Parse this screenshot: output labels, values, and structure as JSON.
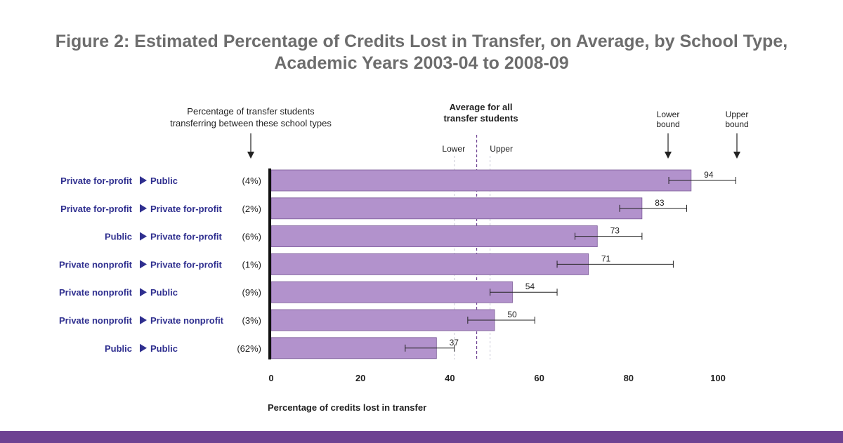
{
  "title": "Figure 2: Estimated Percentage of Credits Lost in Transfer, on Average, by School Type, Academic Years 2003-04 to 2008-09",
  "colors": {
    "bar_fill": "#b292cc",
    "bar_stroke": "#7a5a97",
    "category_text": "#2f2f8f",
    "average_line": "#6e4292",
    "bound_line": "#c9c9d6",
    "bottom_band": "#6e4292"
  },
  "annotations": {
    "share_header": [
      "Percentage of transfer students",
      "transferring between these school types"
    ],
    "average_header": [
      "Average for all",
      "transfer students"
    ],
    "lower_label": "Lower",
    "upper_label": "Upper",
    "bound_lower": [
      "Lower",
      "bound"
    ],
    "bound_upper": [
      "Upper",
      "bound"
    ]
  },
  "chart_data": {
    "type": "bar",
    "orientation": "horizontal",
    "title": "Figure 2: Estimated Percentage of Credits Lost in Transfer, on Average, by School Type, Academic Years 2003-04 to 2008-09",
    "xlabel": "Percentage of credits lost in transfer",
    "xlim": [
      0,
      100
    ],
    "xticks": [
      0,
      20,
      40,
      60,
      80,
      100
    ],
    "grid": false,
    "average": {
      "lower": 41,
      "value": 46,
      "upper": 49
    },
    "rows": [
      {
        "from": "Private for-profit",
        "to": "Public",
        "share": "(4%)",
        "value": 94,
        "lower": 89,
        "upper": 104
      },
      {
        "from": "Private for-profit",
        "to": "Private for-profit",
        "share": "(2%)",
        "value": 83,
        "lower": 78,
        "upper": 93
      },
      {
        "from": "Public",
        "to": "Private for-profit",
        "share": "(6%)",
        "value": 73,
        "lower": 68,
        "upper": 83
      },
      {
        "from": "Private nonprofit",
        "to": "Private for-profit",
        "share": "(1%)",
        "value": 71,
        "lower": 64,
        "upper": 90
      },
      {
        "from": "Private nonprofit",
        "to": "Public",
        "share": "(9%)",
        "value": 54,
        "lower": 49,
        "upper": 64
      },
      {
        "from": "Private nonprofit",
        "to": "Private nonprofit",
        "share": "(3%)",
        "value": 50,
        "lower": 44,
        "upper": 59
      },
      {
        "from": "Public",
        "to": "Public",
        "share": "(62%)",
        "value": 37,
        "lower": 30,
        "upper": 41
      }
    ]
  }
}
